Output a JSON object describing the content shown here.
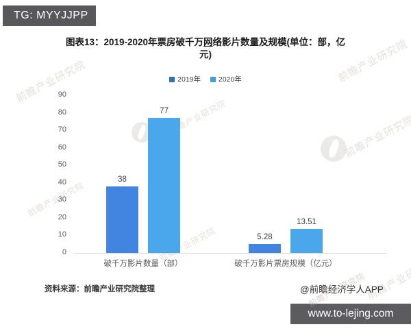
{
  "header": {
    "tg_label": "TG: MYYJJPP"
  },
  "title": {
    "line1_before": "图表13：2019-2020年票房破千万",
    "line1_underlined": "网",
    "line1_after": "络影片数量及规模(单位：部，亿",
    "line2": "元)"
  },
  "chart_data": {
    "type": "bar",
    "title": "图表13：2019-2020年票房破千万网络影片数量及规模(单位：部，亿元)",
    "categories": [
      "破千万影片数量（部）",
      "破千万影片票房规模（亿元）"
    ],
    "series": [
      {
        "name": "2019年",
        "color": "#4285E0",
        "legend_color": "#2E75B6",
        "values": [
          38,
          5.28
        ]
      },
      {
        "name": "2020年",
        "color": "#4AA7EC",
        "legend_color": "#41A0DC",
        "values": [
          77,
          13.51
        ]
      }
    ],
    "ylim": [
      0,
      90
    ],
    "ytick_step": 10,
    "yticks": [
      0,
      10,
      20,
      30,
      40,
      50,
      60,
      70,
      80,
      90
    ],
    "grid": false,
    "legend_position": "top",
    "xlabel": "",
    "ylabel": ""
  },
  "footer": {
    "source": "资料来源：前瞻产业研究院整理",
    "credit": "@前瞻经济学人APP",
    "url": "www.to-lejing.com"
  },
  "watermark": {
    "text": "前瞻产业研究院"
  }
}
